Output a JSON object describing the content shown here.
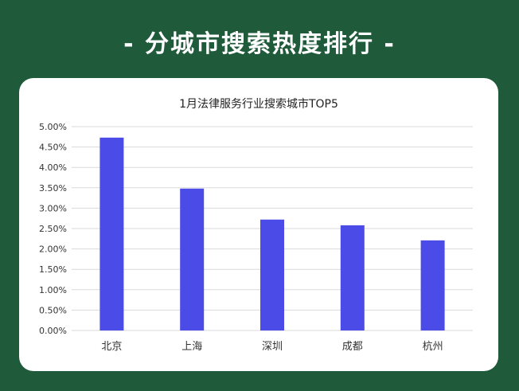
{
  "banner": {
    "title": "- 分城市搜索热度排行 -"
  },
  "chart_data": {
    "type": "bar",
    "title": "1月法律服务行业搜索城市TOP5",
    "xlabel": "",
    "ylabel": "",
    "categories": [
      "北京",
      "上海",
      "深圳",
      "成都",
      "杭州"
    ],
    "values": [
      4.73,
      3.48,
      2.72,
      2.58,
      2.21
    ],
    "y_ticks": [
      "0.00%",
      "0.50%",
      "1.00%",
      "1.50%",
      "2.00%",
      "2.50%",
      "3.00%",
      "3.50%",
      "4.00%",
      "4.50%",
      "5.00%"
    ],
    "ylim": [
      0,
      5
    ],
    "grid": true,
    "bar_color": "#4b4be8"
  },
  "colors": {
    "background": "#1f5a3a",
    "card": "#ffffff",
    "grid": "#d9d9d9"
  }
}
